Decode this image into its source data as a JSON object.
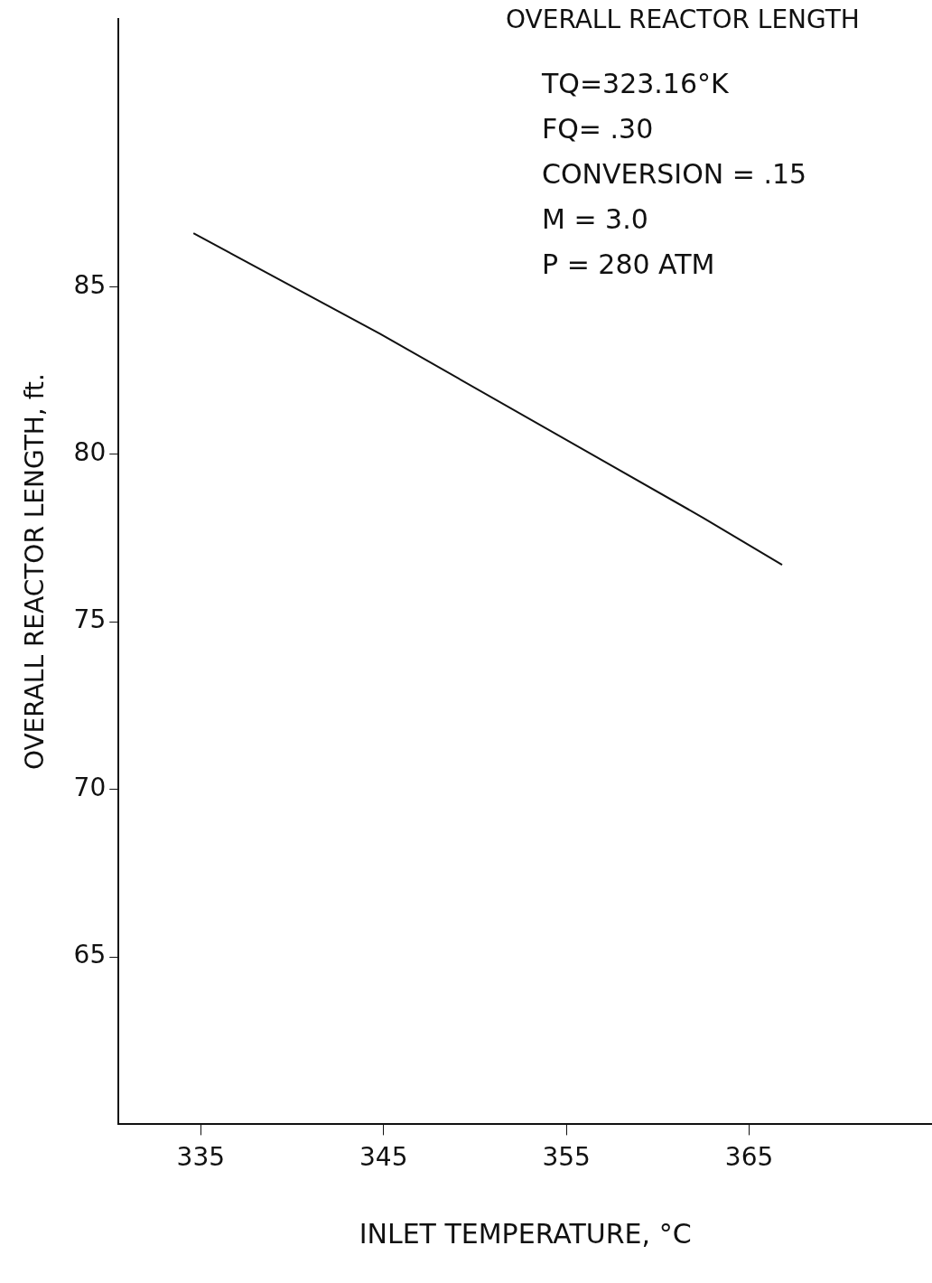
{
  "chart_data": {
    "type": "line",
    "title": "OVERALL REACTOR LENGTH",
    "annotations": [
      "TQ=323.16°K",
      "FQ= .30",
      "CONVERSION = .15",
      "M = 3.0",
      "P = 280 ATM"
    ],
    "xlabel": "INLET TEMPERATURE, °C",
    "ylabel": "OVERALL REACTOR LENGTH, ft.",
    "x": [
      334.6,
      344.8,
      362.5,
      366.8
    ],
    "series": [
      {
        "color": "#111111",
        "values": [
          86.6,
          83.6,
          78.1,
          76.7
        ]
      }
    ],
    "xlim": [
      330.5,
      375
    ],
    "xticks": [
      335,
      345,
      355,
      365
    ],
    "ylim": [
      60,
      93
    ],
    "yticks": [
      65,
      70,
      75,
      80,
      85
    ],
    "grid": false,
    "legend": false,
    "marker": "none",
    "line_style": "solid"
  }
}
